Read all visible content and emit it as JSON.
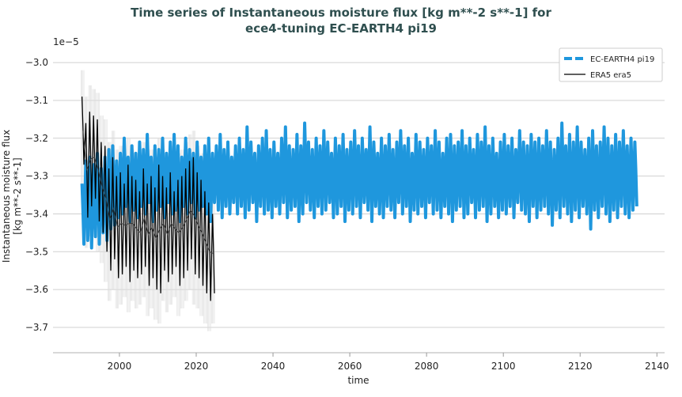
{
  "chart_data": {
    "type": "line",
    "title": [
      "Time series of Instantaneous moisture flux [kg m**-2 s**-1] for",
      "ece4-tuning EC-EARTH4 pi19"
    ],
    "xlabel": "time",
    "ylabel": [
      "Instantaneous moisture flux",
      "[kg m**-2 s**-1]"
    ],
    "y_multiplier": "1e−5",
    "xlim": [
      1982.7,
      2142
    ],
    "ylim": [
      -3.767,
      -2.96
    ],
    "xticks": [
      "2000",
      "2020",
      "2040",
      "2060",
      "2080",
      "2100",
      "2120",
      "2140"
    ],
    "yticks": [
      "−3.0",
      "−3.1",
      "−3.2",
      "−3.3",
      "−3.4",
      "−3.5",
      "−3.6",
      "−3.7"
    ],
    "grid": "horizontal",
    "legend_position": "top-right",
    "series": [
      {
        "name": "EC-EARTH4 pi19",
        "color": "#1f97dd",
        "start_year": 1990,
        "annual_high": [
          -3.32,
          -3.26,
          -3.25,
          -3.27,
          -3.24,
          -3.28,
          -3.25,
          -3.23,
          -3.22,
          -3.26,
          -3.24,
          -3.2,
          -3.25,
          -3.22,
          -3.24,
          -3.21,
          -3.23,
          -3.19,
          -3.25,
          -3.22,
          -3.23,
          -3.2,
          -3.24,
          -3.21,
          -3.19,
          -3.22,
          -3.25,
          -3.2,
          -3.23,
          -3.24,
          -3.21,
          -3.25,
          -3.22,
          -3.2,
          -3.24,
          -3.22,
          -3.19,
          -3.23,
          -3.21,
          -3.25,
          -3.22,
          -3.2,
          -3.23,
          -3.17,
          -3.21,
          -3.24,
          -3.22,
          -3.2,
          -3.18,
          -3.23,
          -3.21,
          -3.24,
          -3.2,
          -3.17,
          -3.22,
          -3.23,
          -3.19,
          -3.22,
          -3.16,
          -3.21,
          -3.23,
          -3.2,
          -3.22,
          -3.18,
          -3.21,
          -3.24,
          -3.2,
          -3.22,
          -3.19,
          -3.23,
          -3.21,
          -3.18,
          -3.22,
          -3.2,
          -3.23,
          -3.17,
          -3.21,
          -3.24,
          -3.2,
          -3.22,
          -3.19,
          -3.23,
          -3.21,
          -3.18,
          -3.22,
          -3.2,
          -3.24,
          -3.19,
          -3.21,
          -3.23,
          -3.2,
          -3.22,
          -3.18,
          -3.21,
          -3.24,
          -3.2,
          -3.19,
          -3.22,
          -3.21,
          -3.18,
          -3.22,
          -3.2,
          -3.23,
          -3.19,
          -3.21,
          -3.17,
          -3.22,
          -3.2,
          -3.24,
          -3.21,
          -3.19,
          -3.22,
          -3.2,
          -3.23,
          -3.18,
          -3.21,
          -3.22,
          -3.19,
          -3.21,
          -3.2,
          -3.22,
          -3.18,
          -3.21,
          -3.23,
          -3.2,
          -3.16,
          -3.22,
          -3.19,
          -3.21,
          -3.17,
          -3.21,
          -3.23,
          -3.2,
          -3.18,
          -3.22,
          -3.21,
          -3.17,
          -3.2,
          -3.22,
          -3.19,
          -3.21,
          -3.18,
          -3.22,
          -3.2,
          -3.21
        ],
        "annual_low": [
          -3.48,
          -3.47,
          -3.49,
          -3.46,
          -3.48,
          -3.45,
          -3.47,
          -3.44,
          -3.43,
          -3.41,
          -3.4,
          -3.38,
          -3.42,
          -3.39,
          -3.41,
          -3.38,
          -3.4,
          -3.37,
          -3.42,
          -3.39,
          -3.38,
          -3.41,
          -3.37,
          -3.4,
          -3.39,
          -3.42,
          -3.38,
          -3.4,
          -3.37,
          -3.41,
          -3.39,
          -3.38,
          -3.4,
          -3.42,
          -3.37,
          -3.39,
          -3.41,
          -3.38,
          -3.4,
          -3.37,
          -3.4,
          -3.38,
          -3.41,
          -3.39,
          -3.37,
          -3.42,
          -3.38,
          -3.4,
          -3.39,
          -3.41,
          -3.38,
          -3.4,
          -3.37,
          -3.41,
          -3.39,
          -3.38,
          -3.42,
          -3.4,
          -3.37,
          -3.39,
          -3.41,
          -3.38,
          -3.4,
          -3.39,
          -3.37,
          -3.41,
          -3.4,
          -3.38,
          -3.42,
          -3.39,
          -3.4,
          -3.38,
          -3.41,
          -3.37,
          -3.39,
          -3.42,
          -3.38,
          -3.4,
          -3.41,
          -3.38,
          -3.39,
          -3.41,
          -3.37,
          -3.4,
          -3.38,
          -3.42,
          -3.39,
          -3.4,
          -3.38,
          -3.41,
          -3.37,
          -3.4,
          -3.39,
          -3.41,
          -3.38,
          -3.4,
          -3.42,
          -3.39,
          -3.38,
          -3.41,
          -3.4,
          -3.37,
          -3.41,
          -3.39,
          -3.38,
          -3.42,
          -3.4,
          -3.38,
          -3.41,
          -3.39,
          -3.4,
          -3.38,
          -3.41,
          -3.37,
          -3.39,
          -3.4,
          -3.42,
          -3.38,
          -3.41,
          -3.39,
          -3.38,
          -3.4,
          -3.43,
          -3.39,
          -3.41,
          -3.38,
          -3.4,
          -3.42,
          -3.39,
          -3.41,
          -3.38,
          -3.4,
          -3.44,
          -3.39,
          -3.41,
          -3.38,
          -3.4,
          -3.42,
          -3.39,
          -3.41,
          -3.38,
          -3.4,
          -3.41,
          -3.39,
          -3.38
        ]
      },
      {
        "name": "ERA5 era5",
        "color": "#000000",
        "start_year": 1990,
        "annual_high": [
          -3.09,
          -3.16,
          -3.13,
          -3.14,
          -3.15,
          -3.21,
          -3.22,
          -3.28,
          -3.25,
          -3.3,
          -3.29,
          -3.32,
          -3.27,
          -3.3,
          -3.31,
          -3.34,
          -3.28,
          -3.32,
          -3.3,
          -3.33,
          -3.27,
          -3.3,
          -3.33,
          -3.29,
          -3.34,
          -3.31,
          -3.3,
          -3.28,
          -3.26,
          -3.25,
          -3.29,
          -3.31,
          -3.34,
          -3.37,
          -3.4
        ],
        "annual_low": [
          -3.27,
          -3.41,
          -3.38,
          -3.36,
          -3.42,
          -3.45,
          -3.5,
          -3.55,
          -3.52,
          -3.57,
          -3.56,
          -3.54,
          -3.58,
          -3.55,
          -3.57,
          -3.56,
          -3.54,
          -3.59,
          -3.57,
          -3.6,
          -3.61,
          -3.55,
          -3.58,
          -3.56,
          -3.54,
          -3.59,
          -3.57,
          -3.55,
          -3.52,
          -3.56,
          -3.57,
          -3.59,
          -3.61,
          -3.63,
          -3.61
        ]
      }
    ]
  }
}
